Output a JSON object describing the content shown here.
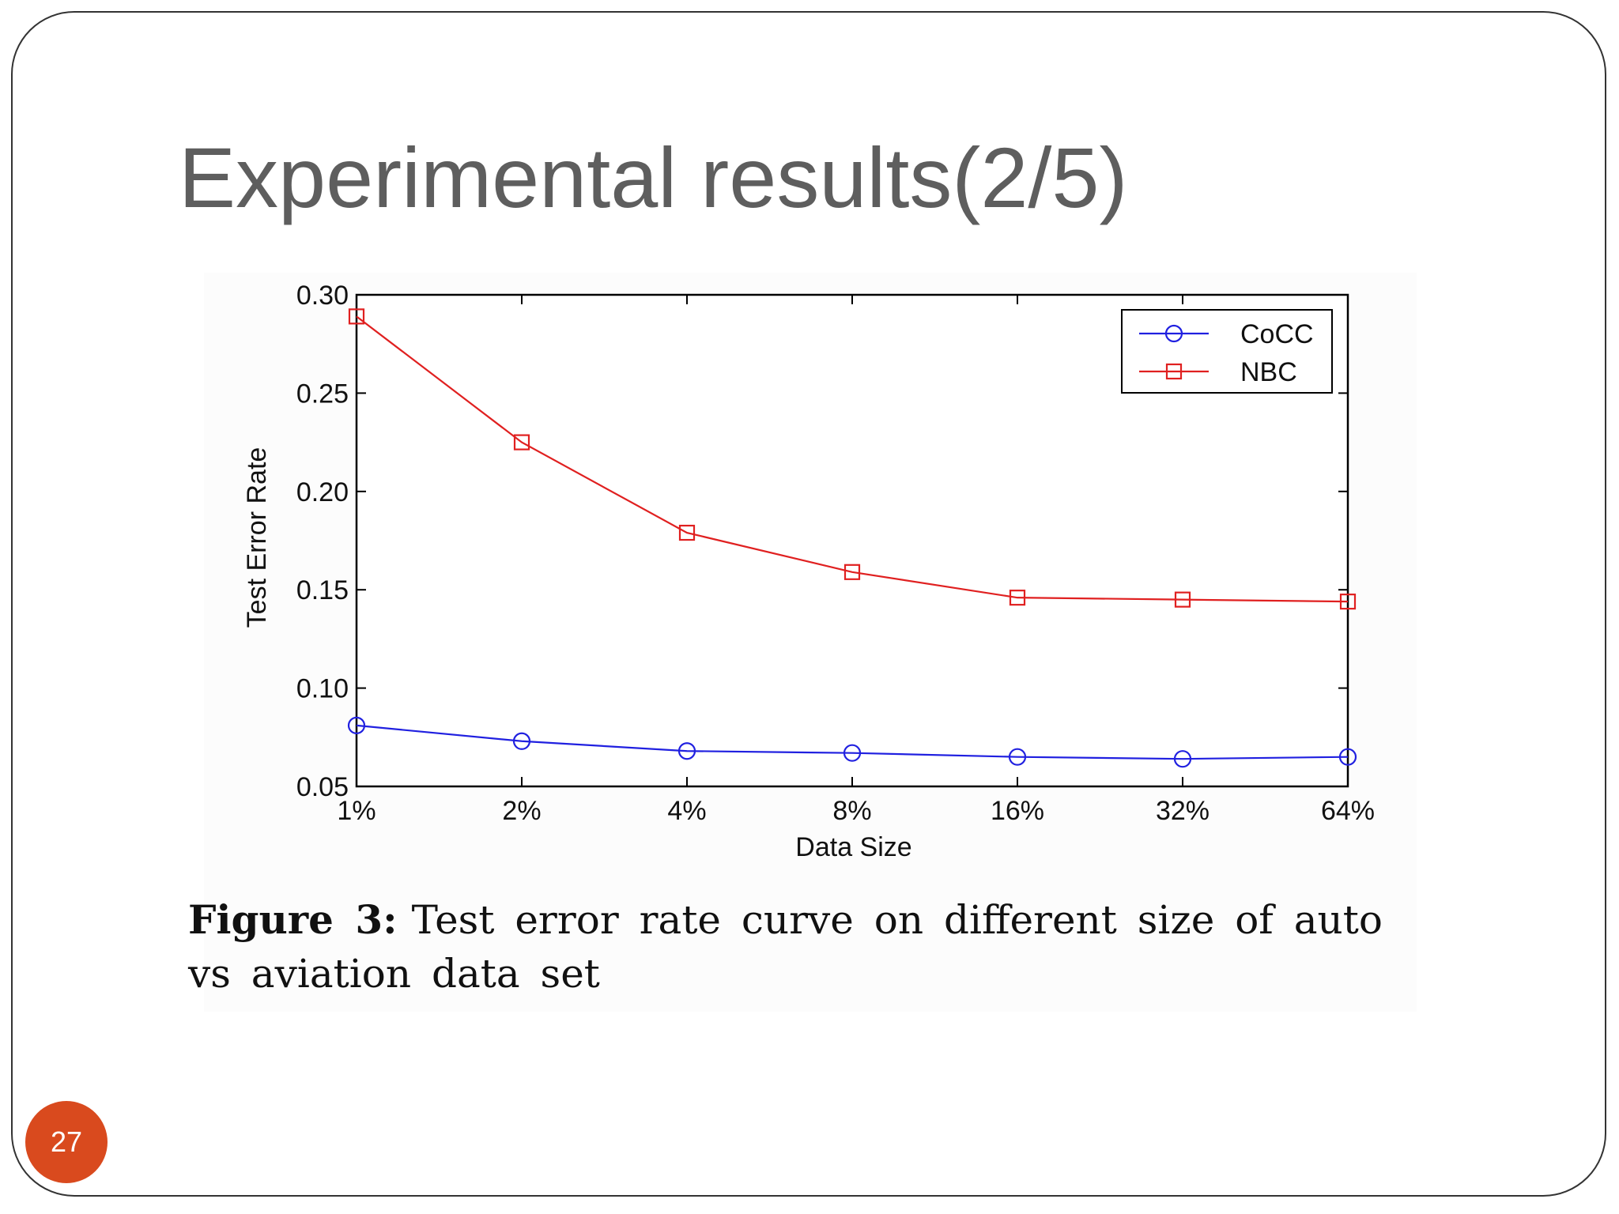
{
  "slide": {
    "title": "Experimental results(2/5)",
    "page_number": "27",
    "accent_color": "#d94a1e"
  },
  "caption": {
    "label": "Figure 3:",
    "text": "Test error rate curve on different size of auto vs aviation data set"
  },
  "chart_data": {
    "type": "line",
    "title": "",
    "xlabel": "Data Size",
    "ylabel": "Test Error Rate",
    "categories": [
      "1%",
      "2%",
      "4%",
      "8%",
      "16%",
      "32%",
      "64%"
    ],
    "ylim": [
      0.05,
      0.3
    ],
    "yticks": [
      "0.05",
      "0.10",
      "0.15",
      "0.20",
      "0.25",
      "0.30"
    ],
    "ytick_values": [
      0.05,
      0.1,
      0.15,
      0.2,
      0.25,
      0.3
    ],
    "grid": false,
    "legend_position": "top-right",
    "series": [
      {
        "name": "CoCC",
        "color": "#2020e0",
        "marker": "circle",
        "values": [
          0.081,
          0.073,
          0.068,
          0.067,
          0.065,
          0.064,
          0.065
        ]
      },
      {
        "name": "NBC",
        "color": "#e02020",
        "marker": "square",
        "values": [
          0.289,
          0.225,
          0.179,
          0.159,
          0.146,
          0.145,
          0.144
        ]
      }
    ]
  }
}
